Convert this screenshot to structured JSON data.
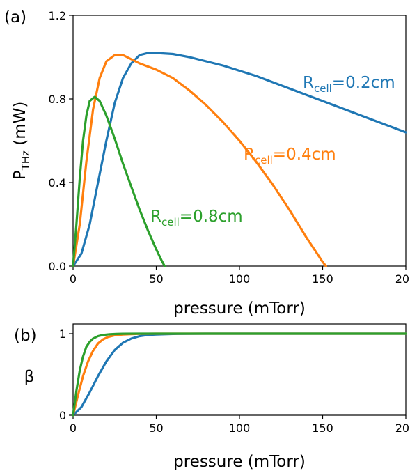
{
  "chart_data": [
    {
      "panel_label": "(a)",
      "type": "line",
      "xlabel": "pressure (mTorr)",
      "ylabel": {
        "main": "P",
        "sub": "THz",
        "unit": " (mW)"
      },
      "xlim": [
        0,
        200
      ],
      "ylim": [
        0,
        1.2
      ],
      "xticks": [
        0,
        50,
        100,
        150,
        200
      ],
      "xtick_labels": [
        "0",
        "50",
        "100",
        "150",
        "200"
      ],
      "yticks": [
        0,
        0.4,
        0.8,
        1.2
      ],
      "ytick_labels": [
        "0.0",
        "0.4",
        "0.8",
        "1.2"
      ],
      "grid": false,
      "series": [
        {
          "name": {
            "main": "R",
            "sub": "cell",
            "rest": "=0.2cm"
          },
          "color": "#1f77b4",
          "x": [
            0,
            5,
            10,
            15,
            20,
            25,
            30,
            35,
            40,
            45,
            50,
            60,
            70,
            80,
            90,
            100,
            110,
            120,
            130,
            140,
            150,
            160,
            170,
            180,
            190,
            200
          ],
          "y": [
            0,
            0.06,
            0.2,
            0.4,
            0.6,
            0.78,
            0.9,
            0.97,
            1.01,
            1.02,
            1.02,
            1.015,
            1.0,
            0.98,
            0.96,
            0.935,
            0.91,
            0.88,
            0.85,
            0.82,
            0.79,
            0.76,
            0.73,
            0.7,
            0.67,
            0.64
          ]
        },
        {
          "name": {
            "main": "R",
            "sub": "cell",
            "rest": "=0.4cm"
          },
          "color": "#ff7f0e",
          "x": [
            0,
            4,
            8,
            12,
            16,
            20,
            25,
            30,
            35,
            40,
            50,
            60,
            70,
            80,
            90,
            100,
            110,
            120,
            130,
            140,
            145,
            150,
            152
          ],
          "y": [
            0,
            0.2,
            0.5,
            0.75,
            0.9,
            0.98,
            1.01,
            1.01,
            0.99,
            0.97,
            0.94,
            0.9,
            0.84,
            0.77,
            0.69,
            0.6,
            0.5,
            0.39,
            0.27,
            0.14,
            0.08,
            0.02,
            0.0
          ]
        },
        {
          "name": {
            "main": "R",
            "sub": "cell",
            "rest": "=0.8cm"
          },
          "color": "#2ca02c",
          "x": [
            0,
            2,
            4,
            6,
            8,
            10,
            13,
            16,
            20,
            25,
            30,
            35,
            40,
            45,
            50,
            53,
            55
          ],
          "y": [
            0,
            0.2,
            0.42,
            0.6,
            0.72,
            0.79,
            0.81,
            0.79,
            0.72,
            0.61,
            0.49,
            0.38,
            0.27,
            0.17,
            0.08,
            0.03,
            0.0
          ]
        }
      ]
    },
    {
      "panel_label": "(b)",
      "type": "line",
      "xlabel": "pressure (mTorr)",
      "ylabel": "β",
      "xlim": [
        0,
        200
      ],
      "ylim": [
        0,
        1
      ],
      "xticks": [
        0,
        50,
        100,
        150,
        200
      ],
      "xtick_labels": [
        "0",
        "50",
        "100",
        "150",
        "200"
      ],
      "yticks": [
        0,
        1
      ],
      "ytick_labels": [
        "0",
        "1"
      ],
      "grid": false,
      "series": [
        {
          "color": "#1f77b4",
          "x": [
            0,
            5,
            10,
            15,
            20,
            25,
            30,
            35,
            40,
            45,
            50,
            60,
            70,
            80,
            100,
            150,
            200
          ],
          "y": [
            0,
            0.1,
            0.28,
            0.48,
            0.66,
            0.8,
            0.89,
            0.94,
            0.97,
            0.985,
            0.99,
            0.997,
            0.999,
            1.0,
            1.0,
            1.0,
            1.0
          ]
        },
        {
          "color": "#ff7f0e",
          "x": [
            0,
            3,
            6,
            9,
            12,
            15,
            18,
            21,
            25,
            30,
            35,
            40,
            50,
            60,
            100,
            150,
            200
          ],
          "y": [
            0,
            0.25,
            0.48,
            0.66,
            0.79,
            0.88,
            0.93,
            0.96,
            0.98,
            0.99,
            0.995,
            0.998,
            1.0,
            1.0,
            1.0,
            1.0,
            1.0
          ]
        },
        {
          "color": "#2ca02c",
          "x": [
            0,
            2,
            4,
            6,
            8,
            10,
            12,
            15,
            18,
            22,
            26,
            30,
            40,
            50,
            100,
            150,
            200
          ],
          "y": [
            0,
            0.3,
            0.55,
            0.72,
            0.84,
            0.9,
            0.94,
            0.97,
            0.985,
            0.993,
            0.997,
            0.999,
            1.0,
            1.0,
            1.0,
            1.0,
            1.0
          ]
        }
      ]
    }
  ]
}
